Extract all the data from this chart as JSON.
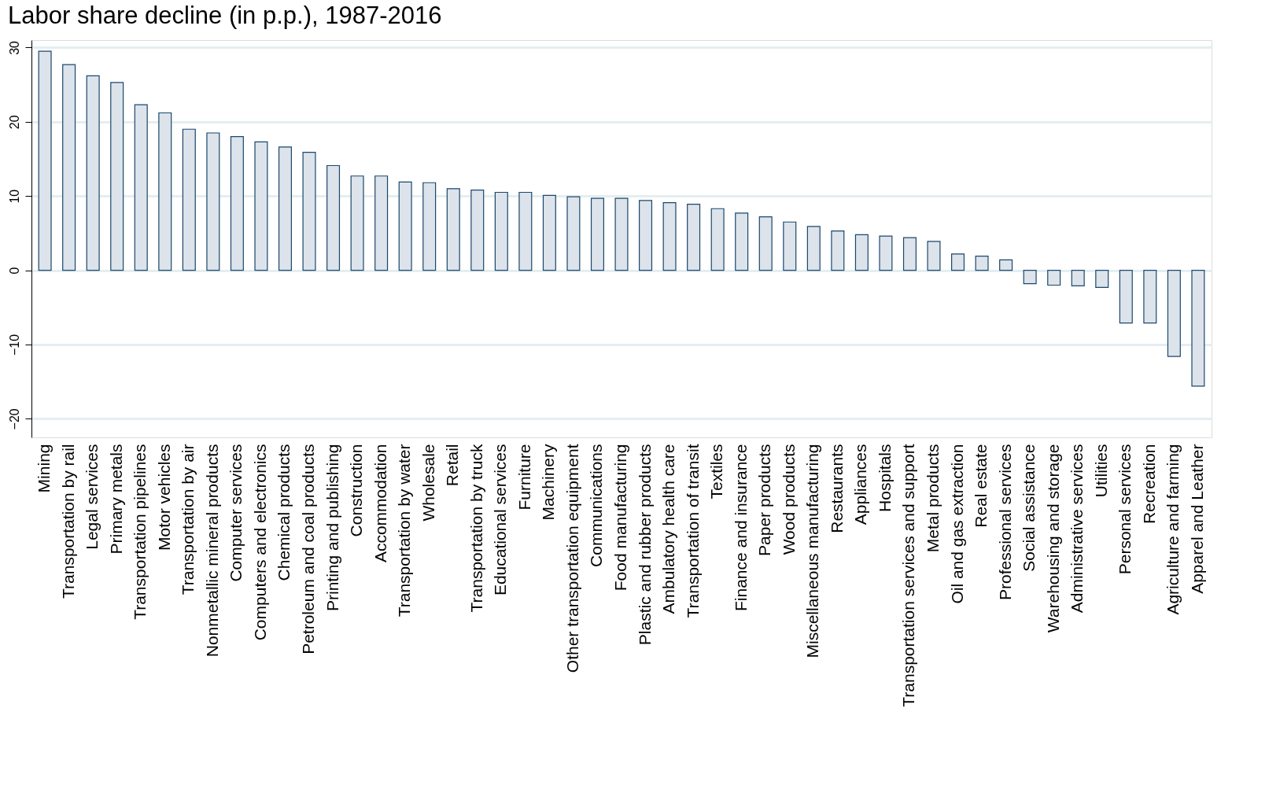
{
  "chart_data": {
    "type": "bar",
    "title": "Labor share decline (in p.p.), 1987-2016",
    "categories": [
      "Mining",
      "Transportation by rail",
      "Legal services",
      "Primary metals",
      "Transportation pipelines",
      "Motor vehicles",
      "Transportation by air",
      "Nonmetallic mineral products",
      "Computer services",
      "Computers and electronics",
      "Chemical products",
      "Petroleum and coal products",
      "Printing and publishing",
      "Construction",
      "Accommodation",
      "Transportation by water",
      "Wholesale",
      "Retail",
      "Transportation by truck",
      "Educational services",
      "Furniture",
      "Machinery",
      "Other transportation equipment",
      "Communications",
      "Food manufacturing",
      "Plastic and rubber products",
      "Ambulatory health care",
      "Transportation of transit",
      "Textiles",
      "Finance and insurance",
      "Paper products",
      "Wood products",
      "Miscellaneous manufacturing",
      "Restaurants",
      "Appliances",
      "Hospitals",
      "Transportation services and support",
      "Metal products",
      "Oil and gas extraction",
      "Real estate",
      "Professional services",
      "Social assistance",
      "Warehousing and storage",
      "Administrative services",
      "Utilities",
      "Personal services",
      "Recreation",
      "Agriculture and farming",
      "Apparel and Leather"
    ],
    "values": [
      29.5,
      27.7,
      26.2,
      25.3,
      22.3,
      21.2,
      19.0,
      18.5,
      18.0,
      17.3,
      16.6,
      15.9,
      14.1,
      12.7,
      12.7,
      11.9,
      11.8,
      11.0,
      10.8,
      10.5,
      10.5,
      10.1,
      9.9,
      9.7,
      9.7,
      9.4,
      9.1,
      8.9,
      8.3,
      7.7,
      7.2,
      6.5,
      5.9,
      5.3,
      4.8,
      4.6,
      4.4,
      3.9,
      2.2,
      1.9,
      1.4,
      -1.8,
      -2.0,
      -2.1,
      -2.3,
      -7.1,
      -7.1,
      -11.6,
      -15.6
    ],
    "color": "#dce3ea",
    "ylim": [
      -22.5,
      31
    ],
    "yticks": [
      -20,
      -10,
      0,
      10,
      20,
      30
    ],
    "grid": "y"
  }
}
